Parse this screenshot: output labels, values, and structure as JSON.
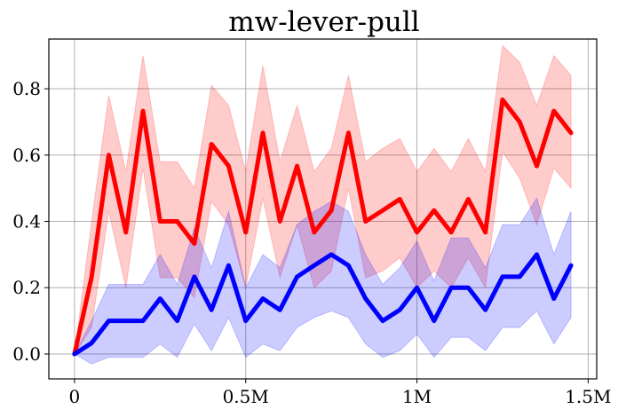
{
  "chart_data": {
    "type": "line",
    "title": "mw-lever-pull",
    "xlabel": "",
    "ylabel": "",
    "xlim": [
      -75000,
      1525000
    ],
    "ylim": [
      -0.075,
      0.95
    ],
    "grid": true,
    "x_ticks": [
      {
        "value": 0,
        "label": "0"
      },
      {
        "value": 500000,
        "label": "0.5M"
      },
      {
        "value": 1000000,
        "label": "1M"
      },
      {
        "value": 1500000,
        "label": "1.5M"
      }
    ],
    "y_ticks": [
      {
        "value": 0.0,
        "label": "0.0"
      },
      {
        "value": 0.2,
        "label": "0.2"
      },
      {
        "value": 0.4,
        "label": "0.4"
      },
      {
        "value": 0.6,
        "label": "0.6"
      },
      {
        "value": 0.8,
        "label": "0.8"
      }
    ],
    "x": [
      0,
      50000,
      100000,
      150000,
      200000,
      250000,
      300000,
      350000,
      400000,
      450000,
      500000,
      550000,
      600000,
      650000,
      700000,
      750000,
      800000,
      850000,
      900000,
      950000,
      1000000,
      1050000,
      1100000,
      1150000,
      1200000,
      1250000,
      1300000,
      1350000,
      1400000,
      1450000
    ],
    "series": [
      {
        "color": "#ff0000",
        "band_color": "#ff0000",
        "values": [
          0.0,
          0.233,
          0.6,
          0.367,
          0.733,
          0.4,
          0.4,
          0.333,
          0.633,
          0.567,
          0.367,
          0.667,
          0.4,
          0.567,
          0.367,
          0.433,
          0.667,
          0.4,
          0.433,
          0.467,
          0.367,
          0.433,
          0.367,
          0.467,
          0.367,
          0.767,
          0.7,
          0.567,
          0.733,
          0.667
        ],
        "upper": [
          0.0,
          0.4,
          0.78,
          0.55,
          0.9,
          0.58,
          0.58,
          0.5,
          0.81,
          0.75,
          0.55,
          0.87,
          0.58,
          0.75,
          0.55,
          0.62,
          0.84,
          0.58,
          0.62,
          0.65,
          0.55,
          0.62,
          0.55,
          0.65,
          0.55,
          0.93,
          0.88,
          0.75,
          0.9,
          0.84
        ],
        "lower": [
          0.0,
          0.08,
          0.43,
          0.2,
          0.56,
          0.23,
          0.23,
          0.17,
          0.46,
          0.39,
          0.2,
          0.47,
          0.23,
          0.39,
          0.2,
          0.25,
          0.5,
          0.23,
          0.25,
          0.29,
          0.2,
          0.25,
          0.2,
          0.29,
          0.2,
          0.61,
          0.53,
          0.39,
          0.56,
          0.5
        ]
      },
      {
        "color": "#0000ff",
        "band_color": "#0000ff",
        "values": [
          0.0,
          0.033,
          0.1,
          0.1,
          0.1,
          0.167,
          0.1,
          0.233,
          0.133,
          0.267,
          0.1,
          0.167,
          0.133,
          0.233,
          0.267,
          0.3,
          0.267,
          0.167,
          0.1,
          0.133,
          0.2,
          0.1,
          0.2,
          0.2,
          0.133,
          0.233,
          0.233,
          0.3,
          0.167,
          0.267
        ],
        "upper": [
          0.0,
          0.1,
          0.21,
          0.21,
          0.21,
          0.3,
          0.21,
          0.38,
          0.26,
          0.43,
          0.2,
          0.3,
          0.26,
          0.39,
          0.43,
          0.46,
          0.43,
          0.3,
          0.21,
          0.26,
          0.34,
          0.22,
          0.35,
          0.35,
          0.26,
          0.39,
          0.39,
          0.47,
          0.3,
          0.43
        ],
        "lower": [
          0.0,
          -0.03,
          -0.01,
          -0.01,
          -0.01,
          0.03,
          -0.01,
          0.09,
          0.01,
          0.11,
          -0.01,
          0.03,
          0.01,
          0.08,
          0.11,
          0.13,
          0.11,
          0.03,
          -0.01,
          0.01,
          0.06,
          -0.01,
          0.05,
          0.05,
          0.01,
          0.08,
          0.08,
          0.13,
          0.03,
          0.11
        ]
      }
    ]
  }
}
